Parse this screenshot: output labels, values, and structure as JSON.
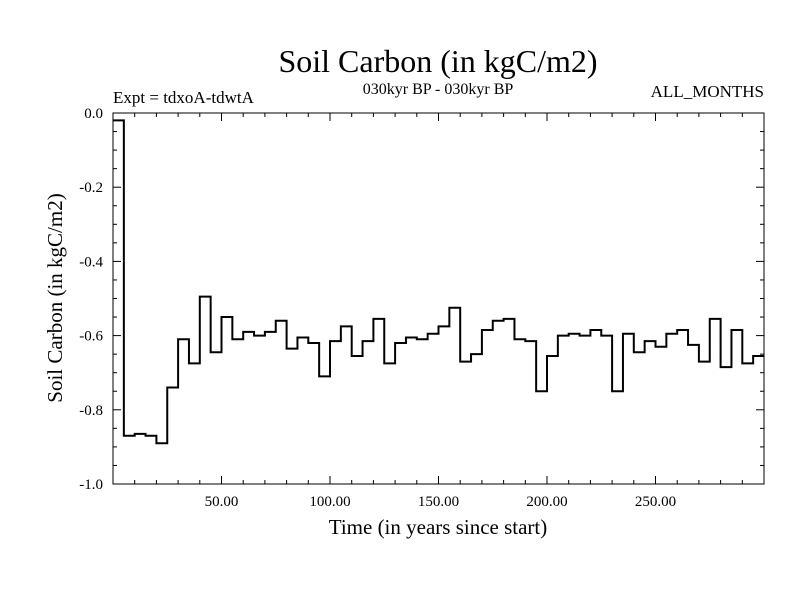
{
  "chart_data": {
    "type": "line",
    "title": "Soil Carbon (in kgC/m2)",
    "subtitle": "030kyr BP - 030kyr BP",
    "left_note": "Expt = tdxoA-tdwtA",
    "right_note": "ALL_MONTHS",
    "xlabel": "Time (in years since start)",
    "ylabel": "Soil Carbon (in kgC/m2)",
    "xlim": [
      0,
      300
    ],
    "ylim": [
      -1.0,
      0.0
    ],
    "x_ticks": [
      50,
      100,
      150,
      200,
      250
    ],
    "x_tick_labels": [
      "50.00",
      "100.00",
      "150.00",
      "200.00",
      "250.00"
    ],
    "y_ticks": [
      0.0,
      -0.2,
      -0.4,
      -0.6,
      -0.8,
      -1.0
    ],
    "y_tick_labels": [
      "0.0",
      "-0.2",
      "-0.4",
      "-0.6",
      "-0.8",
      "-1.0"
    ],
    "step": 5,
    "series": [
      {
        "x": [
          0,
          5,
          10,
          15,
          20,
          25,
          30,
          35,
          40,
          45,
          50,
          55,
          60,
          65,
          70,
          75,
          80,
          85,
          90,
          95,
          100,
          105,
          110,
          115,
          120,
          125,
          130,
          135,
          140,
          145,
          150,
          155,
          160,
          165,
          170,
          175,
          180,
          185,
          190,
          195,
          200,
          205,
          210,
          215,
          220,
          225,
          230,
          235,
          240,
          245,
          250,
          255,
          260,
          265,
          270,
          275,
          280,
          285,
          290,
          295
        ],
        "values": [
          -0.02,
          -0.87,
          -0.865,
          -0.87,
          -0.89,
          -0.74,
          -0.61,
          -0.675,
          -0.495,
          -0.645,
          -0.55,
          -0.61,
          -0.59,
          -0.6,
          -0.59,
          -0.56,
          -0.635,
          -0.605,
          -0.62,
          -0.71,
          -0.615,
          -0.575,
          -0.655,
          -0.615,
          -0.555,
          -0.675,
          -0.62,
          -0.605,
          -0.61,
          -0.595,
          -0.575,
          -0.525,
          -0.67,
          -0.65,
          -0.585,
          -0.56,
          -0.555,
          -0.61,
          -0.615,
          -0.75,
          -0.655,
          -0.6,
          -0.595,
          -0.6,
          -0.585,
          -0.6,
          -0.75,
          -0.595,
          -0.645,
          -0.615,
          -0.63,
          -0.595,
          -0.585,
          -0.625,
          -0.67,
          -0.555,
          -0.685,
          -0.585,
          -0.675,
          -0.655
        ]
      }
    ]
  }
}
